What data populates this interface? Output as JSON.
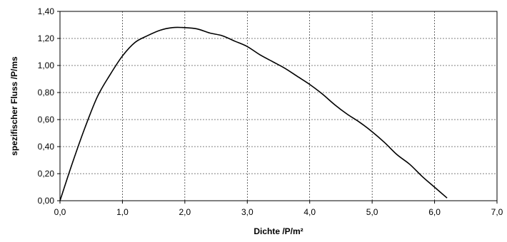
{
  "chart_data": {
    "type": "line",
    "xlabel": "Dichte /P/m²",
    "ylabel": "spezifischer Fluss /P/ms",
    "xlim": [
      0,
      7
    ],
    "ylim": [
      0,
      1.4
    ],
    "grid": true,
    "x_ticks": [
      "0,0",
      "1,0",
      "2,0",
      "3,0",
      "4,0",
      "5,0",
      "6,0",
      "7,0"
    ],
    "y_ticks": [
      "0,00",
      "0,20",
      "0,40",
      "0,60",
      "0,80",
      "1,00",
      "1,20",
      "1,40"
    ],
    "series": [
      {
        "x": [
          0.0,
          0.2,
          0.4,
          0.6,
          0.8,
          1.0,
          1.2,
          1.4,
          1.6,
          1.8,
          2.0,
          2.2,
          2.4,
          2.6,
          2.8,
          3.0,
          3.2,
          3.4,
          3.6,
          3.8,
          4.0,
          4.2,
          4.4,
          4.6,
          4.8,
          5.0,
          5.2,
          5.4,
          5.6,
          5.8,
          6.0,
          6.2
        ],
        "y": [
          0.0,
          0.28,
          0.54,
          0.77,
          0.93,
          1.07,
          1.17,
          1.22,
          1.26,
          1.28,
          1.28,
          1.27,
          1.24,
          1.22,
          1.18,
          1.14,
          1.08,
          1.03,
          0.98,
          0.92,
          0.86,
          0.79,
          0.71,
          0.64,
          0.58,
          0.51,
          0.43,
          0.34,
          0.27,
          0.18,
          0.1,
          0.02
        ]
      }
    ]
  }
}
